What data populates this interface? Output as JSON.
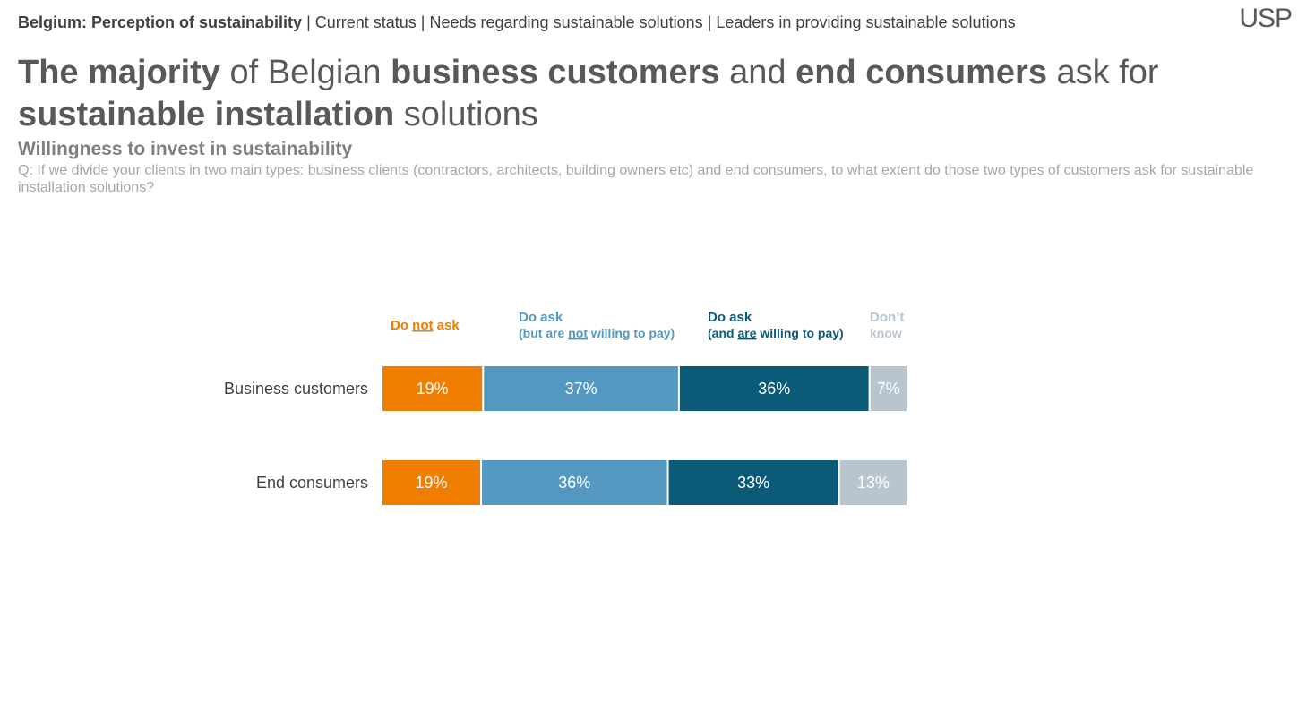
{
  "breadcrumb": {
    "active": "Belgium: Perception of sustainability",
    "items": [
      "Current status",
      "Needs regarding sustainable solutions",
      "Leaders in providing sustainable solutions"
    ]
  },
  "logo": "USP",
  "headline": {
    "p1": "The majority",
    "p2": " of Belgian ",
    "p3": "business customers",
    "p4": " and ",
    "p5": "end consumers",
    "p6": " ask for ",
    "p7": "sustainable installation",
    "p8": " solutions"
  },
  "subtitle": "Willingness to invest in sustainability",
  "question": "Q: If we divide your clients in two main types: business clients (contractors, architects, building owners etc) and end consumers, to what extent do those two types of customers ask for sustainable installation solutions?",
  "colors": {
    "not_ask": "#ef7d00",
    "ask_not_pay": "#5497c1",
    "ask_pay": "#0b5a78",
    "dont_know": "#b8c4ce"
  },
  "chart_data": {
    "type": "bar",
    "orientation": "horizontal",
    "stacked": true,
    "categories": [
      "Business customers",
      "End consumers"
    ],
    "series": [
      {
        "key": "not_ask",
        "values": [
          19,
          19
        ],
        "labels": [
          "19%",
          "19%"
        ]
      },
      {
        "key": "ask_not_pay",
        "values": [
          37,
          36
        ],
        "labels": [
          "37%",
          "36%"
        ]
      },
      {
        "key": "ask_pay",
        "values": [
          36,
          33
        ],
        "labels": [
          "36%",
          "33%"
        ]
      },
      {
        "key": "dont_know",
        "values": [
          7,
          13
        ],
        "labels": [
          "7%",
          "13%"
        ]
      }
    ],
    "legend": [
      {
        "key": "not_ask",
        "parts": [
          {
            "t": "Do "
          },
          {
            "t": "not",
            "u": true
          },
          {
            "t": " ask"
          }
        ]
      },
      {
        "key": "ask_not_pay",
        "line1": "Do ask",
        "parts": [
          {
            "t": "(but are "
          },
          {
            "t": "not",
            "u": true
          },
          {
            "t": " willing to pay)"
          }
        ]
      },
      {
        "key": "ask_pay",
        "line1": "Do ask",
        "parts": [
          {
            "t": "(and "
          },
          {
            "t": "are",
            "u": true
          },
          {
            "t": " willing to pay)"
          }
        ]
      },
      {
        "key": "dont_know",
        "line1": "Don’t",
        "parts": [
          {
            "t": "know"
          }
        ]
      }
    ],
    "legend_placement": "top",
    "grid": false
  }
}
